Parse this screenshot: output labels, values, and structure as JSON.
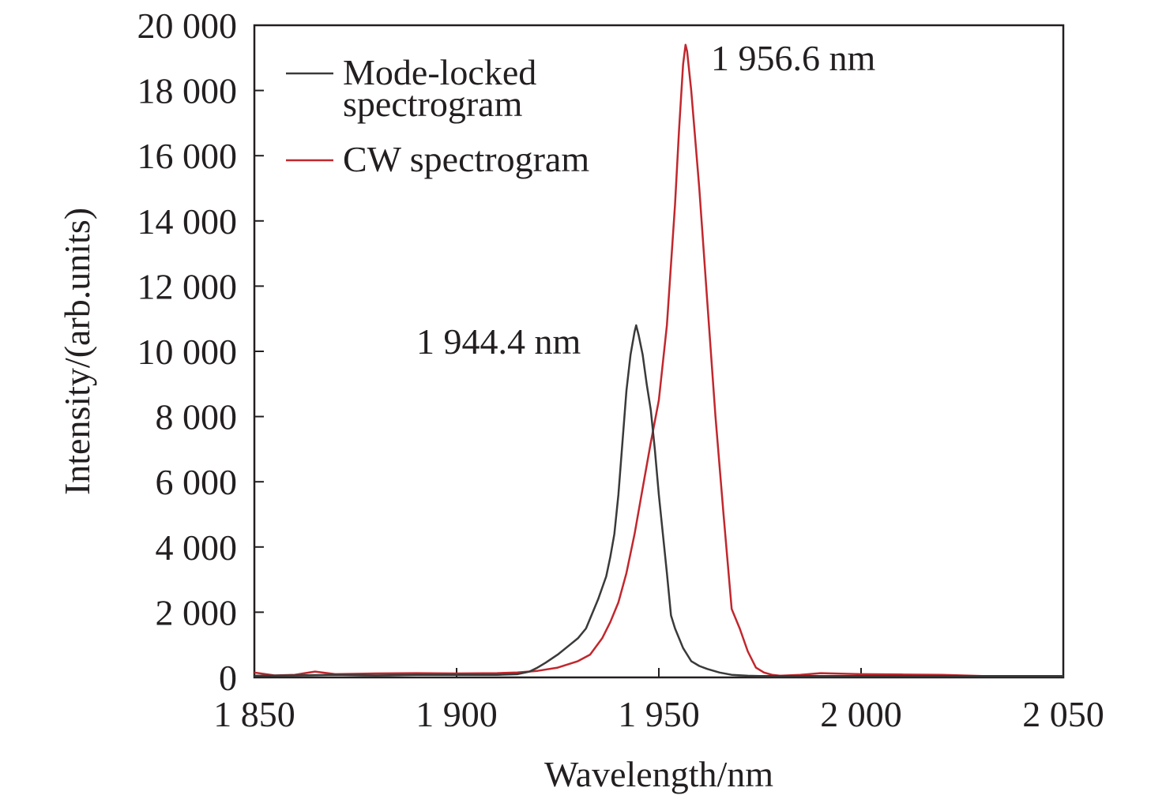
{
  "chart_data": {
    "type": "line",
    "title": "",
    "xlabel": "Wavelength/nm",
    "ylabel": "Intensity/(arb.units)",
    "xlim": [
      1850,
      2050
    ],
    "ylim": [
      0,
      20000
    ],
    "xticks": [
      {
        "value": 1850,
        "label": "1 850"
      },
      {
        "value": 1900,
        "label": "1 900"
      },
      {
        "value": 1950,
        "label": "1 950"
      },
      {
        "value": 2000,
        "label": "2 000"
      },
      {
        "value": 2050,
        "label": "2 050"
      }
    ],
    "yticks": [
      {
        "value": 0,
        "label": "0"
      },
      {
        "value": 2000,
        "label": "2 000"
      },
      {
        "value": 4000,
        "label": "4 000"
      },
      {
        "value": 6000,
        "label": "6 000"
      },
      {
        "value": 8000,
        "label": "8 000"
      },
      {
        "value": 10000,
        "label": "10 000"
      },
      {
        "value": 12000,
        "label": "12 000"
      },
      {
        "value": 14000,
        "label": "14 000"
      },
      {
        "value": 16000,
        "label": "16 000"
      },
      {
        "value": 18000,
        "label": "18 000"
      },
      {
        "value": 20000,
        "label": "20 000"
      }
    ],
    "grid": false,
    "legend_position": "top-left",
    "series": [
      {
        "name": "Mode-locked spectrogram",
        "legend_lines": [
          "Mode-locked",
          "spectrogram"
        ],
        "color": "#3a3a3a",
        "x": [
          1850,
          1860,
          1870,
          1880,
          1890,
          1900,
          1910,
          1915,
          1918,
          1920,
          1922,
          1925,
          1928,
          1930,
          1932,
          1935,
          1937,
          1938,
          1939,
          1940,
          1941,
          1942,
          1943,
          1944,
          1944.4,
          1945,
          1946,
          1947,
          1948,
          1949,
          1950,
          1951,
          1952,
          1953,
          1954,
          1956,
          1958,
          1960,
          1962,
          1965,
          1968,
          1972,
          1975,
          1980,
          1990,
          2000,
          2010,
          2020,
          2030,
          2040,
          2050
        ],
        "y": [
          50,
          60,
          80,
          60,
          80,
          80,
          80,
          100,
          180,
          300,
          450,
          700,
          1000,
          1200,
          1500,
          2400,
          3100,
          3700,
          4400,
          5600,
          7200,
          8800,
          9900,
          10600,
          10800,
          10500,
          9900,
          9000,
          8200,
          7000,
          5600,
          4400,
          3200,
          1900,
          1500,
          900,
          500,
          350,
          260,
          150,
          80,
          50,
          40,
          40,
          40,
          40,
          40,
          40,
          40,
          40,
          40
        ]
      },
      {
        "name": "CW spectrogram",
        "legend_lines": [
          "CW spectrogram"
        ],
        "color": "#c1272d",
        "x": [
          1850,
          1855,
          1860,
          1865,
          1870,
          1880,
          1890,
          1900,
          1910,
          1915,
          1920,
          1925,
          1930,
          1933,
          1936,
          1938,
          1940,
          1942,
          1944,
          1946,
          1948,
          1950,
          1952,
          1954,
          1955,
          1956,
          1956.6,
          1957,
          1958,
          1960,
          1962,
          1964,
          1966,
          1968,
          1970,
          1972,
          1974,
          1976,
          1978,
          1980,
          1985,
          1990,
          2000,
          2010,
          2020,
          2030,
          2040,
          2050
        ],
        "y": [
          150,
          60,
          80,
          180,
          100,
          120,
          130,
          120,
          130,
          150,
          200,
          300,
          500,
          700,
          1200,
          1700,
          2300,
          3200,
          4400,
          5800,
          7200,
          8500,
          10800,
          14500,
          16800,
          18800,
          19400,
          19200,
          18000,
          15000,
          11500,
          8000,
          5000,
          2100,
          1500,
          800,
          300,
          150,
          80,
          50,
          80,
          130,
          100,
          90,
          80,
          40,
          40,
          40
        ]
      }
    ],
    "annotations": [
      {
        "text": "1 944.4 nm",
        "x": 1944.4,
        "y": 10800
      },
      {
        "text": "1 956.6 nm",
        "x": 1956.6,
        "y": 19400
      }
    ]
  }
}
